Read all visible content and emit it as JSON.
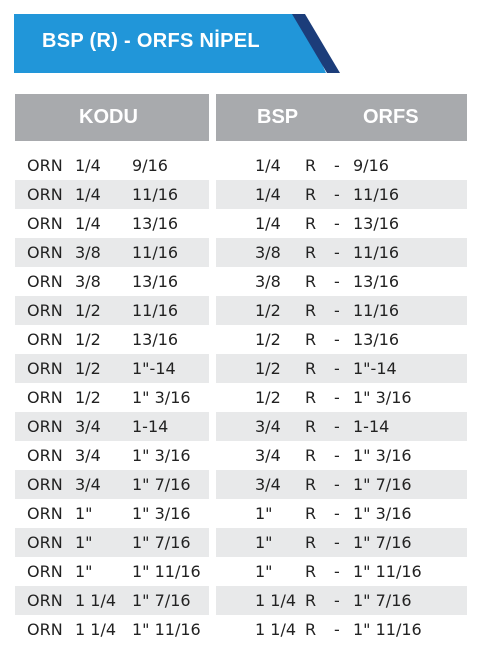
{
  "title": "BSP (R) - ORFS NİPEL",
  "colors": {
    "banner_blue": "#2196d9",
    "stripe_dark": "#1c3d7a",
    "header_gray": "#a8aaad",
    "row_shade": "#e8e9ea"
  },
  "headers": {
    "kodu": "KODU",
    "bsp": "BSP",
    "orfs": "ORFS"
  },
  "rows": [
    {
      "prefix": "ORN",
      "size": "1/4",
      "thread": "9/16",
      "bsp": "1/4",
      "r": "R",
      "dash": "-",
      "orfs": "9/16"
    },
    {
      "prefix": "ORN",
      "size": "1/4",
      "thread": "11/16",
      "bsp": "1/4",
      "r": "R",
      "dash": "-",
      "orfs": "11/16"
    },
    {
      "prefix": "ORN",
      "size": "1/4",
      "thread": "13/16",
      "bsp": "1/4",
      "r": "R",
      "dash": "-",
      "orfs": "13/16"
    },
    {
      "prefix": "ORN",
      "size": "3/8",
      "thread": "11/16",
      "bsp": "3/8",
      "r": "R",
      "dash": "-",
      "orfs": "11/16"
    },
    {
      "prefix": "ORN",
      "size": "3/8",
      "thread": "13/16",
      "bsp": "3/8",
      "r": "R",
      "dash": "-",
      "orfs": "13/16"
    },
    {
      "prefix": "ORN",
      "size": "1/2",
      "thread": "11/16",
      "bsp": "1/2",
      "r": "R",
      "dash": "-",
      "orfs": "11/16"
    },
    {
      "prefix": "ORN",
      "size": "1/2",
      "thread": "13/16",
      "bsp": "1/2",
      "r": "R",
      "dash": "-",
      "orfs": "13/16"
    },
    {
      "prefix": "ORN",
      "size": "1/2",
      "thread": "1\"-14",
      "bsp": "1/2",
      "r": "R",
      "dash": "-",
      "orfs": "1\"-14"
    },
    {
      "prefix": "ORN",
      "size": "1/2",
      "thread": "1\" 3/16",
      "bsp": "1/2",
      "r": "R",
      "dash": "-",
      "orfs": "1\" 3/16"
    },
    {
      "prefix": "ORN",
      "size": "3/4",
      "thread": "1-14",
      "bsp": "3/4",
      "r": "R",
      "dash": "-",
      "orfs": "1-14"
    },
    {
      "prefix": "ORN",
      "size": "3/4",
      "thread": "1\" 3/16",
      "bsp": "3/4",
      "r": "R",
      "dash": "-",
      "orfs": "1\" 3/16"
    },
    {
      "prefix": "ORN",
      "size": "3/4",
      "thread": "1\" 7/16",
      "bsp": "3/4",
      "r": "R",
      "dash": "-",
      "orfs": "1\" 7/16"
    },
    {
      "prefix": "ORN",
      "size": "1\"",
      "thread": "1\" 3/16",
      "bsp": "1\"",
      "r": "R",
      "dash": "-",
      "orfs": "1\" 3/16"
    },
    {
      "prefix": "ORN",
      "size": "1\"",
      "thread": "1\" 7/16",
      "bsp": "1\"",
      "r": "R",
      "dash": "-",
      "orfs": "1\" 7/16"
    },
    {
      "prefix": "ORN",
      "size": "1\"",
      "thread": "1\" 11/16",
      "bsp": "1\"",
      "r": "R",
      "dash": "-",
      "orfs": "1\" 11/16"
    },
    {
      "prefix": "ORN",
      "size": "1 1/4",
      "thread": "1\" 7/16",
      "bsp": "1 1/4",
      "r": "R",
      "dash": "-",
      "orfs": "1\" 7/16"
    },
    {
      "prefix": "ORN",
      "size": "1 1/4",
      "thread": "1\" 11/16",
      "bsp": "1 1/4",
      "r": "R",
      "dash": "-",
      "orfs": "1\" 11/16"
    }
  ]
}
